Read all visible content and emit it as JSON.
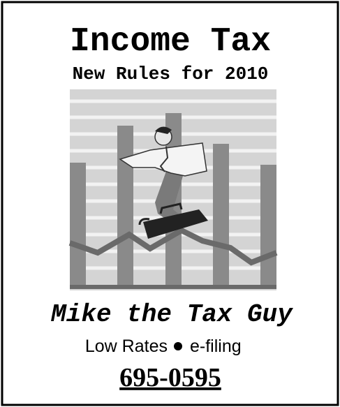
{
  "header": {
    "title": "Income Tax",
    "subtitle": "New Rules for 2010"
  },
  "footer": {
    "name": "Mike the Tax Guy",
    "features": [
      "Low Rates",
      "e-filing"
    ],
    "phone": "695-0595"
  }
}
